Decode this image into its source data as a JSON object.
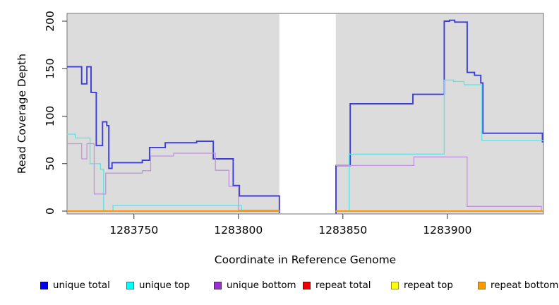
{
  "figure": {
    "panel_bg": "#dcdcdc",
    "panel_border": "#8a8a8a",
    "gap_fill": "#ffffff",
    "tick_color": "#333333"
  },
  "chart_data": {
    "type": "line",
    "subtype": "step-coverage",
    "title": "",
    "xlabel": "Coordinate in Reference Genome",
    "ylabel": "Read Coverage Depth",
    "xlim": [
      1283718,
      1283946
    ],
    "ylim": [
      0,
      200
    ],
    "x_ticks": [
      1283750,
      1283800,
      1283850,
      1283900
    ],
    "y_ticks": [
      0,
      50,
      100,
      150,
      200
    ],
    "grid": false,
    "legend_position": "bottom",
    "gap": {
      "x_start": 1283819.6,
      "x_end": 1283846.6,
      "note": "white band, no data"
    },
    "series": [
      {
        "name": "unique total",
        "color": "#3c3cd9",
        "legend_color": "#0000ee",
        "legend_border": "#00008b",
        "segments": [
          {
            "points": [
              [
                1283718,
                152
              ],
              [
                1283725,
                134
              ],
              [
                1283727.5,
                152
              ],
              [
                1283729.5,
                125
              ],
              [
                1283732,
                69
              ],
              [
                1283735,
                94
              ],
              [
                1283737,
                90
              ],
              [
                1283738,
                45
              ],
              [
                1283739.5,
                51
              ],
              [
                1283754,
                53.5
              ],
              [
                1283757.5,
                67
              ],
              [
                1283765,
                72
              ],
              [
                1283780,
                73.5
              ],
              [
                1283788,
                55
              ],
              [
                1283797.5,
                27
              ],
              [
                1283800.5,
                16
              ],
              [
                1283819.6,
                -2
              ]
            ],
            "end": 1283819.6
          },
          {
            "points": [
              [
                1283846.5,
                -2
              ],
              [
                1283846.7,
                48
              ],
              [
                1283853.5,
                113
              ],
              [
                1283883.5,
                123
              ],
              [
                1283898.5,
                200
              ],
              [
                1283901,
                201
              ],
              [
                1283903.5,
                199
              ],
              [
                1283909.5,
                146
              ],
              [
                1283913,
                143
              ],
              [
                1283916,
                135
              ],
              [
                1283917,
                82
              ],
              [
                1283945.5,
                73
              ]
            ],
            "end": 1283946
          }
        ]
      },
      {
        "name": "unique top",
        "color": "#63e3e3",
        "legend_color": "#00ffff",
        "legend_border": "#008b8b",
        "segments": [
          {
            "points": [
              [
                1283718,
                81
              ],
              [
                1283722,
                77
              ],
              [
                1283729,
                50
              ],
              [
                1283734,
                44
              ],
              [
                1283735.5,
                0
              ],
              [
                1283740,
                6
              ],
              [
                1283801.5,
                0
              ]
            ],
            "end": 1283819.6
          },
          {
            "points": [
              [
                1283846.5,
                0
              ],
              [
                1283853,
                60
              ],
              [
                1283898.5,
                138
              ],
              [
                1283903,
                136.5
              ],
              [
                1283908,
                133
              ],
              [
                1283916.5,
                74.5
              ]
            ],
            "end": 1283946
          }
        ]
      },
      {
        "name": "unique bottom",
        "color": "#c193e0",
        "legend_color": "#9932cc",
        "legend_border": "#551a8b",
        "segments": [
          {
            "points": [
              [
                1283718,
                71
              ],
              [
                1283725,
                55
              ],
              [
                1283727.5,
                71
              ],
              [
                1283731,
                18
              ],
              [
                1283736.5,
                40
              ],
              [
                1283754,
                42.5
              ],
              [
                1283758,
                58
              ],
              [
                1283769,
                61
              ],
              [
                1283789,
                43
              ],
              [
                1283795.5,
                26
              ],
              [
                1283800,
                1
              ]
            ],
            "end": 1283819.6
          },
          {
            "points": [
              [
                1283846.5,
                48
              ],
              [
                1283884,
                57
              ],
              [
                1283909.5,
                5
              ],
              [
                1283945,
                0
              ]
            ],
            "end": 1283946
          }
        ]
      },
      {
        "name": "repeat total",
        "color": "#ee0000",
        "legend_color": "#ee0000",
        "legend_border": "#8b0000",
        "segments": [
          {
            "points": [
              [
                1283718,
                0
              ]
            ],
            "end": 1283819.6
          },
          {
            "points": [
              [
                1283846.5,
                0
              ]
            ],
            "end": 1283946
          }
        ]
      },
      {
        "name": "repeat top",
        "color": "#ffff00",
        "legend_color": "#ffff00",
        "legend_border": "#9a9a00",
        "segments": [
          {
            "points": [
              [
                1283718,
                0
              ]
            ],
            "end": 1283819.6
          },
          {
            "points": [
              [
                1283846.5,
                0
              ]
            ],
            "end": 1283946
          }
        ]
      },
      {
        "name": "repeat bottom",
        "color": "#ff9500",
        "legend_color": "#ff9900",
        "legend_border": "#b36b00",
        "segments": [
          {
            "points": [
              [
                1283718,
                0
              ]
            ],
            "end": 1283819.6
          },
          {
            "points": [
              [
                1283846.5,
                0
              ]
            ],
            "end": 1283946
          }
        ]
      }
    ]
  }
}
